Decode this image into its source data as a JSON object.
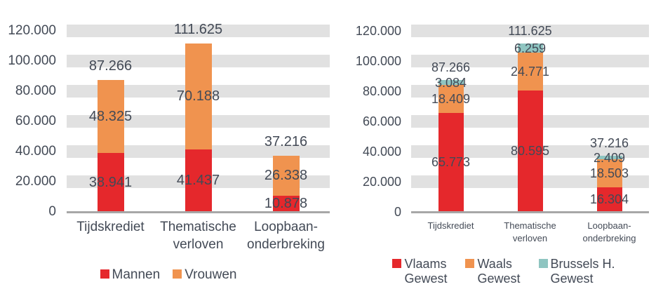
{
  "figure": {
    "background": "#ffffff",
    "text_color": "#434a56",
    "stripe_color": "#e1e1e1",
    "axis_color": "#a7a7a7"
  },
  "chart_data": [
    {
      "type": "bar",
      "stacked": true,
      "title": "",
      "xlabel": "",
      "ylabel": "",
      "grid": "horizontal-bands",
      "legend_position": "bottom",
      "ylim": [
        0,
        120000
      ],
      "ytick_step": 20000,
      "yticks": [
        "0",
        "20.000",
        "40.000",
        "60.000",
        "80.000",
        "100.000",
        "120.000"
      ],
      "categories": [
        "Tijdskrediet",
        "Thematische\nverloven",
        "Loopbaan-\nonderbreking"
      ],
      "series": [
        {
          "name": "Mannen",
          "legend_label": "Mannen",
          "color": "#e5282c",
          "values": [
            38941,
            41437,
            10878
          ],
          "labels": [
            "38.941",
            "41.437",
            "10.878"
          ]
        },
        {
          "name": "Vrouwen",
          "legend_label": "Vrouwen",
          "color": "#f0934f",
          "values": [
            48325,
            70188,
            26338
          ],
          "labels": [
            "48.325",
            "70.188",
            "26.338"
          ]
        }
      ],
      "totals": {
        "values": [
          87266,
          111625,
          37216
        ],
        "labels": [
          "87.266",
          "111.625",
          "37.216"
        ]
      }
    },
    {
      "type": "bar",
      "stacked": true,
      "title": "",
      "xlabel": "",
      "ylabel": "",
      "grid": "horizontal-bands",
      "legend_position": "bottom",
      "ylim": [
        0,
        120000
      ],
      "ytick_step": 20000,
      "yticks": [
        "0",
        "20.000",
        "40.000",
        "60.000",
        "80.000",
        "100.000",
        "120.000"
      ],
      "categories": [
        "Tijdskrediet",
        "Thematische\nverloven",
        "Loopbaan-\nonderbreking"
      ],
      "series": [
        {
          "name": "Vlaams Gewest",
          "legend_label": "Vlaams\nGewest",
          "color": "#e5282c",
          "values": [
            65773,
            80595,
            16304
          ],
          "labels": [
            "65.773",
            "80.595",
            "16.304"
          ]
        },
        {
          "name": "Waals Gewest",
          "legend_label": "Waals\nGewest",
          "color": "#f0934f",
          "values": [
            18409,
            24771,
            18503
          ],
          "labels": [
            "18.409",
            "24.771",
            "18.503"
          ]
        },
        {
          "name": "Brussels H. Gewest",
          "legend_label": "Brussels H.\nGewest",
          "color": "#8fc5c1",
          "values": [
            3084,
            6259,
            2409
          ],
          "labels": [
            "3.084",
            "6.259",
            "2.409"
          ]
        }
      ],
      "totals": {
        "values": [
          87266,
          111625,
          37216
        ],
        "labels": [
          "87.266",
          "111.625",
          "37.216"
        ]
      }
    }
  ]
}
